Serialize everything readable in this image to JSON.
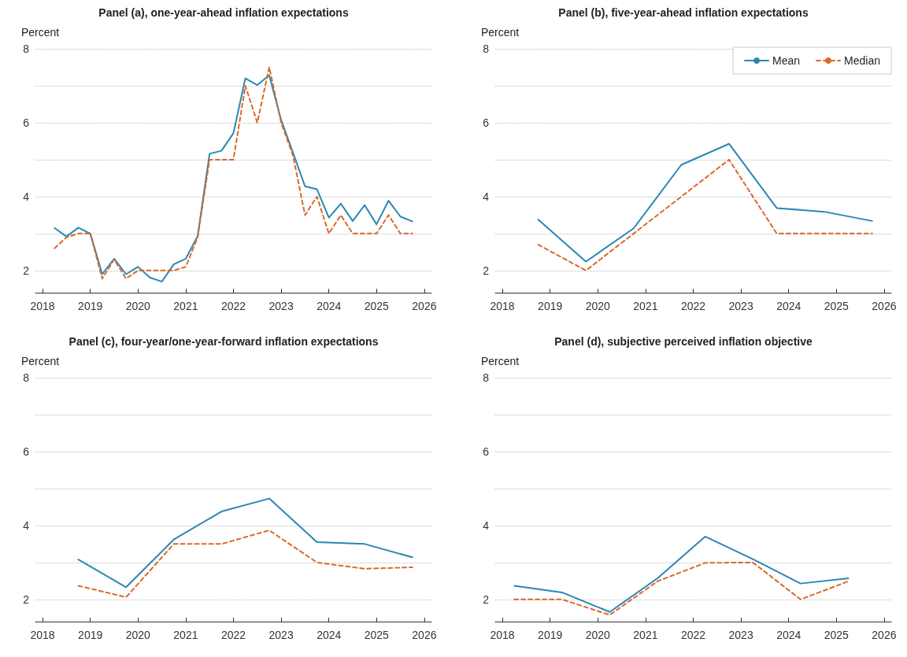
{
  "chart_data": [
    {
      "type": "line",
      "title": "Panel (a), one-year-ahead inflation expectations",
      "ylabel": "Percent",
      "xlim": [
        2017.85,
        2026.15
      ],
      "xticks": [
        2018,
        2019,
        2020,
        2021,
        2022,
        2023,
        2024,
        2025,
        2026
      ],
      "ylim": [
        1.4,
        8
      ],
      "yticks": [
        2,
        4,
        6,
        8
      ],
      "grid": "y",
      "legend": false,
      "x": [
        2018.25,
        2018.5,
        2018.75,
        2019,
        2019.25,
        2019.5,
        2019.75,
        2020,
        2020.25,
        2020.5,
        2020.75,
        2021,
        2021.25,
        2021.5,
        2021.75,
        2022,
        2022.25,
        2022.5,
        2022.75,
        2023,
        2023.25,
        2023.5,
        2023.75,
        2024,
        2024.25,
        2024.5,
        2024.75,
        2025,
        2025.25,
        2025.5,
        2025.75
      ],
      "series": [
        {
          "color": "#2a87b5",
          "line_style": "solid",
          "values": [
            3.15,
            2.92,
            3.16,
            3.0,
            1.9,
            2.32,
            1.9,
            2.1,
            1.81,
            1.7,
            2.17,
            2.32,
            2.93,
            5.16,
            5.24,
            5.72,
            7.2,
            7.02,
            7.28,
            6.07,
            5.18,
            4.28,
            4.2,
            3.43,
            3.81,
            3.34,
            3.77,
            3.25,
            3.89,
            3.46,
            3.33
          ]
        },
        {
          "color": "#d9692b",
          "line_style": "dashed",
          "values": [
            2.6,
            2.9,
            3.0,
            3.0,
            1.78,
            2.3,
            1.78,
            2.0,
            2.0,
            2.0,
            2.0,
            2.1,
            2.9,
            5.0,
            5.0,
            5.0,
            7.0,
            6.0,
            7.5,
            6.0,
            5.1,
            3.5,
            4.0,
            3.0,
            3.5,
            3.0,
            3.0,
            3.0,
            3.5,
            3.0,
            3.0
          ]
        }
      ]
    },
    {
      "type": "line",
      "title": "Panel (b), five-year-ahead inflation expectations",
      "ylabel": "Percent",
      "xlim": [
        2017.85,
        2026.15
      ],
      "xticks": [
        2018,
        2019,
        2020,
        2021,
        2022,
        2023,
        2024,
        2025,
        2026
      ],
      "ylim": [
        1.4,
        8
      ],
      "yticks": [
        2,
        4,
        6,
        8
      ],
      "grid": "y",
      "legend": "top right",
      "x": [
        2018.75,
        2019.75,
        2020.75,
        2021.75,
        2022.75,
        2023.75,
        2024.75,
        2025.75
      ],
      "series": [
        {
          "name": "Mean",
          "color": "#2a87b5",
          "line_style": "solid",
          "values": [
            3.38,
            2.24,
            3.14,
            4.86,
            5.43,
            3.69,
            3.59,
            3.34
          ]
        },
        {
          "name": "Median",
          "color": "#d9692b",
          "line_style": "dashed",
          "values": [
            2.7,
            2.0,
            3.0,
            4.0,
            5.0,
            3.0,
            3.0,
            3.0
          ]
        }
      ]
    },
    {
      "type": "line",
      "title": "Panel (c), four-year/one-year-forward inflation expectations",
      "ylabel": "Percent",
      "xlim": [
        2017.85,
        2026.15
      ],
      "xticks": [
        2018,
        2019,
        2020,
        2021,
        2022,
        2023,
        2024,
        2025,
        2026
      ],
      "ylim": [
        1.4,
        8
      ],
      "yticks": [
        2,
        4,
        6,
        8
      ],
      "grid": "y",
      "legend": false,
      "x": [
        2018.75,
        2019.75,
        2020.75,
        2021.75,
        2022.75,
        2023.75,
        2024.75,
        2025.75
      ],
      "series": [
        {
          "color": "#2a87b5",
          "line_style": "solid",
          "values": [
            3.08,
            2.33,
            3.62,
            4.38,
            4.73,
            3.55,
            3.5,
            3.14
          ]
        },
        {
          "color": "#d9692b",
          "line_style": "dashed",
          "values": [
            2.37,
            2.06,
            3.5,
            3.5,
            3.87,
            3.0,
            2.83,
            2.87
          ]
        }
      ]
    },
    {
      "type": "line",
      "title": "Panel (d), subjective perceived inflation objective",
      "ylabel": "Percent",
      "xlim": [
        2017.85,
        2026.15
      ],
      "xticks": [
        2018,
        2019,
        2020,
        2021,
        2022,
        2023,
        2024,
        2025,
        2026
      ],
      "ylim": [
        1.4,
        8
      ],
      "yticks": [
        2,
        4,
        6,
        8
      ],
      "grid": "y",
      "legend": false,
      "x": [
        2018.25,
        2019.25,
        2020.25,
        2021.25,
        2022.25,
        2023.25,
        2024.25,
        2025.25
      ],
      "series": [
        {
          "color": "#2a87b5",
          "line_style": "solid",
          "values": [
            2.37,
            2.19,
            1.66,
            2.57,
            3.7,
            3.09,
            2.43,
            2.57
          ]
        },
        {
          "color": "#d9692b",
          "line_style": "dashed",
          "values": [
            2.0,
            2.0,
            1.58,
            2.49,
            2.99,
            3.0,
            2.0,
            2.49
          ]
        }
      ]
    }
  ]
}
